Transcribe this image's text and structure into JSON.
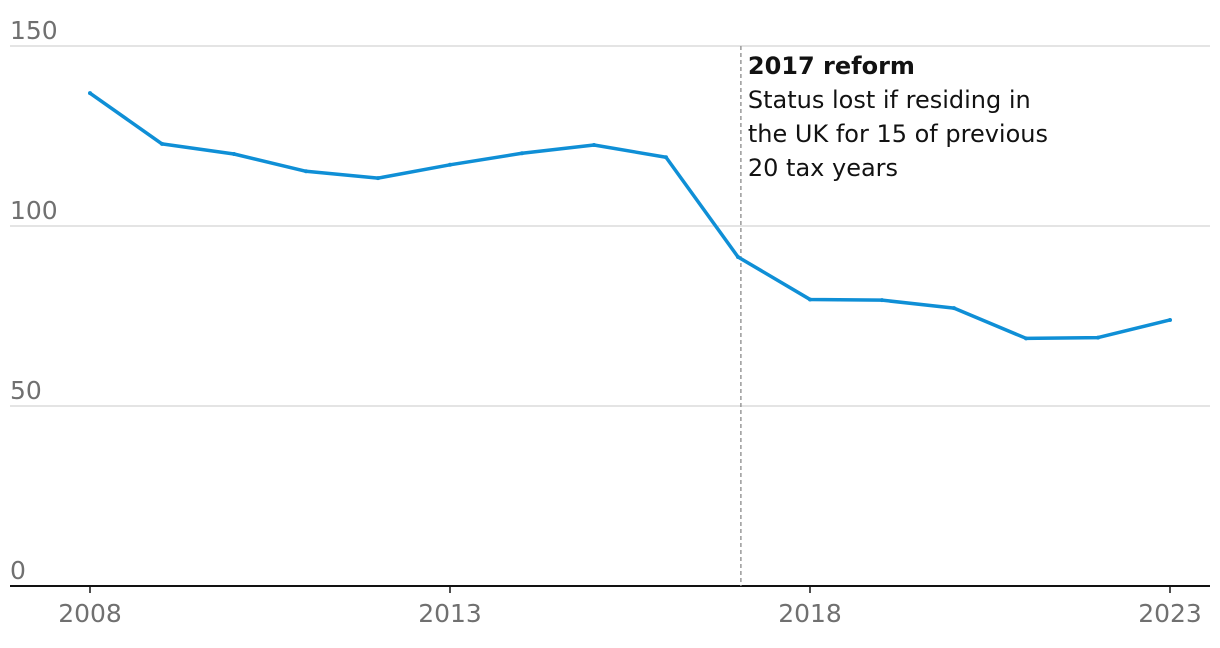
{
  "chart_data": {
    "type": "line",
    "title": "",
    "xlabel": "",
    "ylabel": "",
    "x": [
      2008,
      2009,
      2010,
      2011,
      2012,
      2013,
      2014,
      2015,
      2016,
      2017,
      2018,
      2019,
      2020,
      2021,
      2022,
      2023
    ],
    "series": [
      {
        "values": [
          136.9,
          122.8,
          120.0,
          115.2,
          113.3,
          117.0,
          120.2,
          122.5,
          119.1,
          91.4,
          79.6,
          79.4,
          77.2,
          68.8,
          69.0,
          73.9
        ],
        "color": "#0f8fd6"
      }
    ],
    "xlim": [
      2008,
      2023
    ],
    "ylim": [
      0,
      150
    ],
    "yticks": [
      "0",
      "50",
      "100",
      "150"
    ],
    "xticks": [
      "2008",
      "2013",
      "2018",
      "2023"
    ],
    "grid": true,
    "annotation": {
      "x": 2017,
      "title": "2017 reform",
      "lines": [
        "Status lost if residing in",
        "the UK for 15 of previous",
        "20 tax years"
      ]
    }
  }
}
